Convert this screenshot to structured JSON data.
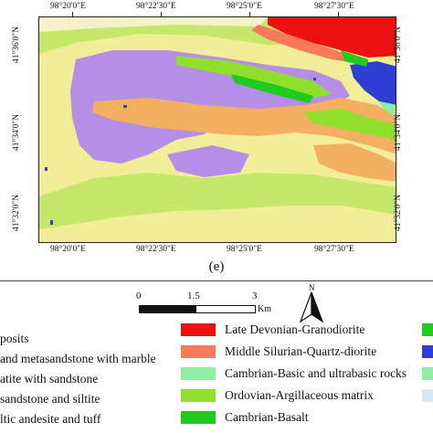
{
  "map": {
    "top_axis": [
      "98°20'0\"E",
      "98°22'30\"E",
      "98°25'0\"E",
      "98°27'30\"E"
    ],
    "bottom_axis": [
      "98°20'0\"E",
      "98°22'30\"E",
      "98°25'0\"E",
      "98°27'30\"E"
    ],
    "left_axis": [
      "41°36'0\"N",
      "41°34'0\"N",
      "41°32'0\"N"
    ],
    "right_axis": [
      "41°36'0\"N",
      "41°34'0\"N",
      "41°32'0\"N"
    ],
    "panel_label": "(e)"
  },
  "scale_bar": {
    "ticks": [
      "0",
      "1.5",
      "3"
    ],
    "unit": "Km"
  },
  "north_arrow": {
    "label": "N"
  },
  "legend": {
    "left": [
      {
        "label": "posits",
        "color": "#ffffff"
      },
      {
        "label": "and metasandstone with marble",
        "color": "#ffffff"
      },
      {
        "label": "atite with sandstone",
        "color": "#ffffff"
      },
      {
        "label": "sandstone and siltite",
        "color": "#ffffff"
      },
      {
        "label": "ltic andesite and tuff",
        "color": "#ffffff"
      }
    ],
    "right": [
      {
        "label": "Late Devonian-Granodiorite",
        "color": "#ee1111"
      },
      {
        "label": "Middle Silurian-Quartz-diorite",
        "color": "#f47a5a"
      },
      {
        "label": "Cambrian-Basic and ultrabasic rocks",
        "color": "#8cf0a0"
      },
      {
        "label": "Ordovian-Argillaceous matrix",
        "color": "#8fe02a"
      },
      {
        "label": "Cambrian-Basalt",
        "color": "#1ecb1e"
      }
    ],
    "edge_swatches": [
      "#1ecb1e",
      "#2f3fd6",
      "#8cf0a0",
      "#d8e8f0",
      ""
    ]
  },
  "colors": {
    "yellow": "#f2ee98",
    "purple": "#b58ee6",
    "orange": "#f2b060",
    "yellowgreen": "#c5e86a",
    "green": "#8fe02a",
    "darkgreen": "#1ecb1e",
    "red": "#ee1111",
    "blue": "#2f3fd6",
    "lightgreen": "#8cf0a0",
    "salmon": "#f47a5a"
  }
}
